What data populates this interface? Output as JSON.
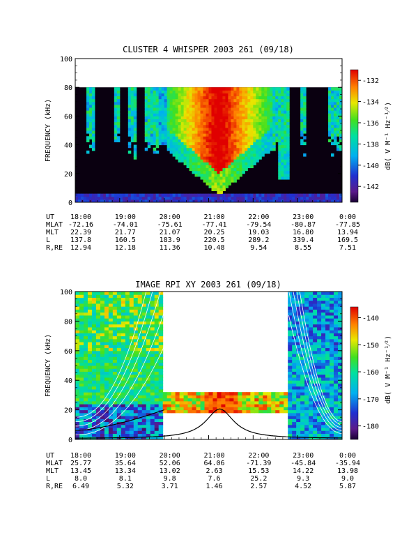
{
  "chart_data": [
    {
      "type": "heatmap",
      "title": "CLUSTER 4 WHISPER 2003 261 (09/18)",
      "ylabel": "FREQUENCY (kHz)",
      "yticks": [
        "0",
        "20",
        "40",
        "60",
        "80",
        "100"
      ],
      "ylim": [
        0,
        100
      ],
      "data_ylim": [
        0,
        80
      ],
      "colorbar": {
        "label": "dB( V M⁻¹ Hz⁻¹⁄²)",
        "ticks": [
          "-132",
          "-134",
          "-136",
          "-138",
          "-140",
          "-142"
        ],
        "range": [
          -143.5,
          -131
        ]
      },
      "ephemeris_labels": [
        "UT",
        "MLAT",
        "MLT",
        "L",
        "R,RE"
      ],
      "ephemeris": [
        [
          "18:00",
          "19:00",
          "20:00",
          "21:00",
          "22:00",
          "23:00",
          "0:00"
        ],
        [
          "-72.16",
          "-74.01",
          "-75.61",
          "-77.41",
          "-79.54",
          "-80.87",
          "-77.85"
        ],
        [
          "22.39",
          "21.77",
          "21.07",
          "20.25",
          "19.03",
          "16.80",
          "13.94"
        ],
        [
          "137.8",
          "160.5",
          "183.9",
          "220.5",
          "289.2",
          "339.4",
          "169.5"
        ],
        [
          "12.94",
          "12.18",
          "11.36",
          "10.48",
          "9.54",
          "8.55",
          "7.51"
        ]
      ]
    },
    {
      "type": "heatmap",
      "title": "IMAGE RPI XY 2003 261 (09/18)",
      "ylabel": "FREQUENCY (kHz)",
      "yticks": [
        "0",
        "20",
        "40",
        "60",
        "80",
        "100"
      ],
      "ylim": [
        0,
        100
      ],
      "colorbar": {
        "label": "dB( V M⁻¹ Hz⁻¹⁄²)",
        "ticks": [
          "-140",
          "-150",
          "-160",
          "-170",
          "-180"
        ],
        "range": [
          -185,
          -136
        ]
      },
      "gaps": [
        {
          "x_hours": [
            19.95,
            22.8
          ],
          "y_khz": [
            32,
            100
          ]
        },
        {
          "x_hours": [
            19.95,
            22.8
          ],
          "y_khz": [
            0,
            17
          ]
        }
      ],
      "line_peak": {
        "x_hours": 21.25,
        "y_khz": 20
      },
      "ephemeris_labels": [
        "UT",
        "MLAT",
        "MLT",
        "L",
        "R,RE"
      ],
      "ephemeris": [
        [
          "18:00",
          "19:00",
          "20:00",
          "21:00",
          "22:00",
          "23:00",
          "0:00"
        ],
        [
          "25.77",
          "35.64",
          "52.06",
          "64.06",
          "-71.39",
          "-45.84",
          "-35.94"
        ],
        [
          "13.45",
          "13.34",
          "13.02",
          "2.63",
          "15.53",
          "14.22",
          "13.98"
        ],
        [
          "8.0",
          "8.1",
          "9.8",
          "7.6",
          "25.2",
          "9.3",
          "9.0"
        ],
        [
          "6.49",
          "5.32",
          "3.71",
          "1.46",
          "2.57",
          "4.52",
          "5.87"
        ]
      ]
    }
  ]
}
